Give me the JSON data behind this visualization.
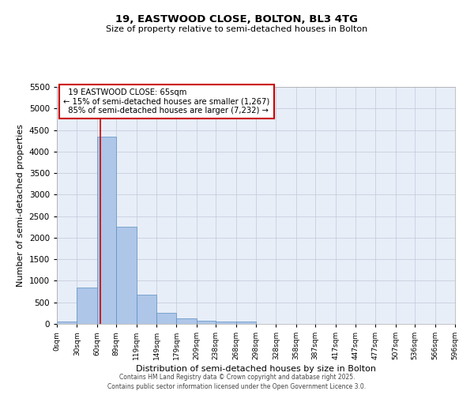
{
  "title1": "19, EASTWOOD CLOSE, BOLTON, BL3 4TG",
  "title2": "Size of property relative to semi-detached houses in Bolton",
  "xlabel": "Distribution of semi-detached houses by size in Bolton",
  "ylabel": "Number of semi-detached properties",
  "bar_values": [
    50,
    850,
    4350,
    2250,
    680,
    250,
    120,
    80,
    60,
    50,
    0,
    0,
    0,
    0,
    0,
    0,
    0,
    0,
    0,
    0
  ],
  "bin_edges": [
    0,
    30,
    60,
    89,
    119,
    149,
    179,
    209,
    238,
    268,
    298,
    328,
    358,
    387,
    417,
    447,
    477,
    507,
    536,
    566,
    596
  ],
  "tick_labels": [
    "0sqm",
    "30sqm",
    "60sqm",
    "89sqm",
    "119sqm",
    "149sqm",
    "179sqm",
    "209sqm",
    "238sqm",
    "268sqm",
    "298sqm",
    "328sqm",
    "358sqm",
    "387sqm",
    "417sqm",
    "447sqm",
    "477sqm",
    "507sqm",
    "536sqm",
    "566sqm",
    "596sqm"
  ],
  "property_size": 65,
  "property_label": "19 EASTWOOD CLOSE: 65sqm",
  "smaller_pct": "15%",
  "smaller_n": "1,267",
  "larger_pct": "85%",
  "larger_n": "7,232",
  "bar_color": "#aec6e8",
  "bar_edge_color": "#5a8fc2",
  "red_line_color": "#cc0000",
  "annotation_box_color": "#cc0000",
  "background_color": "#e8eef8",
  "grid_color": "#c0c8d8",
  "ylim": [
    0,
    5500
  ],
  "yticks": [
    0,
    500,
    1000,
    1500,
    2000,
    2500,
    3000,
    3500,
    4000,
    4500,
    5000,
    5500
  ],
  "footer1": "Contains HM Land Registry data © Crown copyright and database right 2025.",
  "footer2": "Contains public sector information licensed under the Open Government Licence 3.0."
}
